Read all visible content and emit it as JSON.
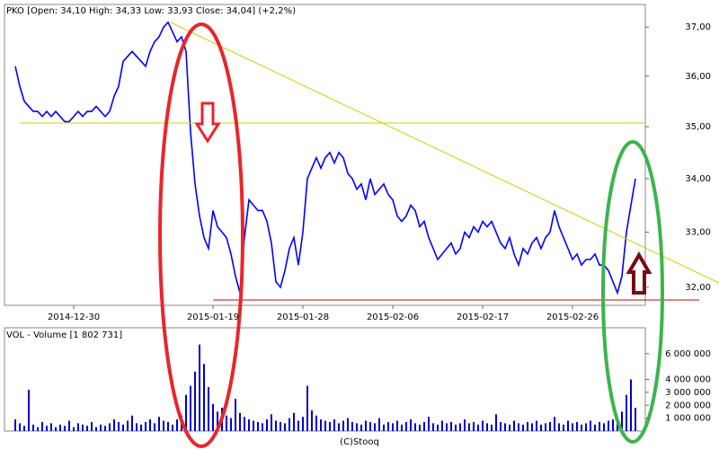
{
  "source": "(C)Stooq",
  "chart_data": [
    {
      "type": "line",
      "title": "PKO [Open: 34,10 High: 34,33 Low: 33,93 Close: 34,04] (+2,2%)",
      "log": true,
      "color": "#0000ff",
      "categories": [
        null,
        null,
        null,
        null,
        null,
        null,
        null,
        null,
        null,
        null,
        null,
        null,
        null,
        "2014-12-30",
        null,
        null,
        null,
        null,
        null,
        null,
        null,
        null,
        null,
        null,
        null,
        null,
        null,
        null,
        null,
        null,
        null,
        null,
        null,
        null,
        null,
        null,
        null,
        null,
        null,
        null,
        null,
        null,
        null,
        null,
        "2015-01-19",
        null,
        null,
        null,
        null,
        null,
        null,
        null,
        null,
        null,
        null,
        null,
        null,
        null,
        null,
        null,
        null,
        null,
        null,
        null,
        "2015-01-28",
        null,
        null,
        null,
        null,
        null,
        null,
        null,
        null,
        null,
        null,
        null,
        null,
        null,
        null,
        null,
        null,
        null,
        null,
        null,
        "2015-02-06",
        null,
        null,
        null,
        null,
        null,
        null,
        null,
        null,
        null,
        null,
        null,
        null,
        null,
        null,
        null,
        null,
        null,
        null,
        null,
        "2015-02-17",
        null,
        null,
        null,
        null,
        null,
        null,
        null,
        null,
        null,
        null,
        null,
        null,
        null,
        null,
        null,
        null,
        null,
        null,
        null,
        "2015-02-26",
        null,
        null,
        null,
        null,
        null,
        null,
        null,
        null,
        null,
        null,
        null,
        null,
        null,
        null
      ],
      "values": [
        36.2,
        35.8,
        35.5,
        35.4,
        35.3,
        35.3,
        35.2,
        35.3,
        35.2,
        35.3,
        35.2,
        35.1,
        35.1,
        35.2,
        35.3,
        35.2,
        35.3,
        35.3,
        35.4,
        35.3,
        35.2,
        35.3,
        35.6,
        35.8,
        36.3,
        36.4,
        36.5,
        36.4,
        36.3,
        36.2,
        36.5,
        36.7,
        36.8,
        37.0,
        37.1,
        36.9,
        36.7,
        36.8,
        36.5,
        34.9,
        33.9,
        33.3,
        32.9,
        32.7,
        33.4,
        33.1,
        33.0,
        32.9,
        32.6,
        32.2,
        31.9,
        32.9,
        33.6,
        33.5,
        33.4,
        33.4,
        33.2,
        32.8,
        32.1,
        32.0,
        32.3,
        32.7,
        32.9,
        32.4,
        33.0,
        34.0,
        34.2,
        34.4,
        34.2,
        34.4,
        34.5,
        34.3,
        34.5,
        34.4,
        34.1,
        34.0,
        33.8,
        33.9,
        33.6,
        34.0,
        33.7,
        33.8,
        33.9,
        33.7,
        33.6,
        33.3,
        33.2,
        33.3,
        33.5,
        33.4,
        33.1,
        33.2,
        32.9,
        32.7,
        32.5,
        32.6,
        32.7,
        32.8,
        32.6,
        32.7,
        33.0,
        32.9,
        33.1,
        33.0,
        33.2,
        33.1,
        33.2,
        33.0,
        32.8,
        32.7,
        32.9,
        32.6,
        32.4,
        32.7,
        32.6,
        32.8,
        32.9,
        32.7,
        32.9,
        33.0,
        33.4,
        33.1,
        32.9,
        32.7,
        32.5,
        32.6,
        32.4,
        32.5,
        32.5,
        32.6,
        32.4,
        32.4,
        32.3,
        32.1,
        31.9,
        32.2,
        33.0,
        33.5,
        34.0
      ],
      "ylim": [
        31.68,
        37.47
      ],
      "yticks": [
        {
          "value": 32,
          "label": "32,00"
        },
        {
          "value": 33,
          "label": "33,00"
        },
        {
          "value": 34,
          "label": "34,00"
        },
        {
          "value": 35,
          "label": "35,00"
        },
        {
          "value": 36,
          "label": "36,00"
        },
        {
          "value": 37,
          "label": "37,00"
        }
      ]
    },
    {
      "type": "bar",
      "title": "VOL - Volume [1 802 731]",
      "color": "#0000cc",
      "values": [
        900000,
        600000,
        400000,
        3200000,
        500000,
        300000,
        700000,
        400000,
        600000,
        300000,
        500000,
        400000,
        800000,
        300000,
        600000,
        500000,
        400000,
        700000,
        300000,
        500000,
        400000,
        600000,
        900000,
        700000,
        500000,
        800000,
        1200000,
        600000,
        500000,
        700000,
        900000,
        600000,
        1100000,
        800000,
        700000,
        500000,
        900000,
        1200000,
        2800000,
        3500000,
        4600000,
        6700000,
        5200000,
        3400000,
        2100000,
        1500000,
        1800000,
        1200000,
        1000000,
        2500000,
        1400000,
        1100000,
        900000,
        800000,
        700000,
        600000,
        900000,
        1300000,
        800000,
        700000,
        600000,
        1000000,
        1400000,
        800000,
        1100000,
        3500000,
        1600000,
        1200000,
        900000,
        800000,
        700000,
        900000,
        600000,
        800000,
        1000000,
        700000,
        600000,
        500000,
        800000,
        700000,
        600000,
        1000000,
        500000,
        700000,
        600000,
        800000,
        500000,
        700000,
        900000,
        600000,
        500000,
        700000,
        1100000,
        600000,
        500000,
        800000,
        600000,
        700000,
        500000,
        600000,
        900000,
        600000,
        700000,
        500000,
        800000,
        600000,
        500000,
        1300000,
        700000,
        600000,
        500000,
        800000,
        600000,
        500000,
        700000,
        600000,
        800000,
        500000,
        600000,
        700000,
        1100000,
        600000,
        500000,
        800000,
        600000,
        700000,
        500000,
        600000,
        800000,
        500000,
        700000,
        600000,
        800000,
        900000,
        700000,
        1500000,
        2800000,
        4000000,
        1800000
      ],
      "ylim": [
        0,
        8000000
      ],
      "yticks": [
        {
          "value": 1000000,
          "label": "1 000 000"
        },
        {
          "value": 2000000,
          "label": "2 000 000"
        },
        {
          "value": 3000000,
          "label": "3 000 000"
        },
        {
          "value": 4000000,
          "label": "4 000 000"
        },
        {
          "value": 6000000,
          "label": "6 000 000"
        }
      ]
    }
  ]
}
